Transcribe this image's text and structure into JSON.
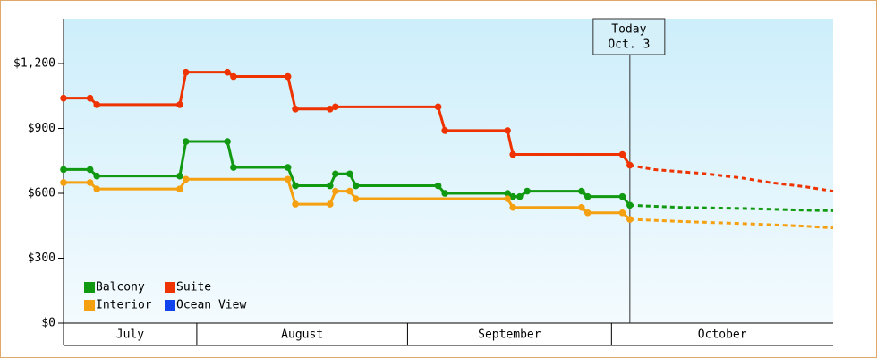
{
  "chart_data": {
    "type": "line",
    "xlim": [
      12.4,
      125.6
    ],
    "ylim": [
      0,
      1407
    ],
    "yticks": [
      {
        "value": 0,
        "label": "$0"
      },
      {
        "value": 300,
        "label": "$300"
      },
      {
        "value": 600,
        "label": "$600"
      },
      {
        "value": 900,
        "label": "$900"
      },
      {
        "value": 1200,
        "label": "$1,200"
      }
    ],
    "xticks": [
      {
        "value": 12.4,
        "label": "July"
      },
      {
        "value": 32,
        "label": "August"
      },
      {
        "value": 63,
        "label": "September"
      },
      {
        "value": 93,
        "label": "October"
      }
    ],
    "annotation": {
      "x": 95.7,
      "line1": "Today",
      "line2": "Oct. 3"
    },
    "series": [
      {
        "name": "Balcony",
        "color": "#119911",
        "x": [
          12.4,
          16.3,
          17.3,
          29.5,
          30.4,
          36.5,
          37.4,
          45.4,
          46.5,
          51.6,
          52.4,
          54.5,
          55.4,
          67.5,
          68.5,
          77.7,
          78.5,
          79.5,
          80.6,
          88.6,
          89.5,
          94.6,
          95.7
        ],
        "values": [
          710,
          710,
          680,
          680,
          840,
          840,
          720,
          720,
          635,
          635,
          690,
          690,
          635,
          635,
          600,
          600,
          585,
          585,
          610,
          610,
          585,
          585,
          545
        ],
        "forecast": {
          "x": [
            95.7,
            103.2,
            112.4,
            121.6,
            125.6
          ],
          "values": [
            545,
            535,
            530,
            522,
            520
          ]
        }
      },
      {
        "name": "Suite",
        "color": "#ee3300",
        "x": [
          12.4,
          16.3,
          17.3,
          29.5,
          30.4,
          36.5,
          37.4,
          45.4,
          46.5,
          51.6,
          52.4,
          67.5,
          68.5,
          77.7,
          78.5,
          94.6,
          95.7
        ],
        "values": [
          1040,
          1040,
          1010,
          1010,
          1160,
          1160,
          1140,
          1140,
          990,
          990,
          1000,
          1000,
          890,
          890,
          780,
          780,
          730
        ],
        "forecast": {
          "x": [
            95.7,
            99.2,
            103.2,
            107.1,
            112.4,
            116.3,
            121.6,
            125.6
          ],
          "values": [
            730,
            710,
            700,
            690,
            670,
            650,
            630,
            610
          ]
        }
      },
      {
        "name": "Interior",
        "color": "#f5a010",
        "x": [
          12.4,
          16.3,
          17.3,
          29.5,
          30.4,
          45.4,
          46.5,
          51.6,
          52.4,
          54.5,
          55.4,
          77.7,
          78.5,
          88.6,
          89.5,
          94.6,
          95.7
        ],
        "values": [
          650,
          650,
          620,
          620,
          665,
          665,
          550,
          550,
          610,
          610,
          575,
          575,
          535,
          535,
          510,
          510,
          480
        ],
        "forecast": {
          "x": [
            95.7,
            103.2,
            112.4,
            121.6,
            125.6
          ],
          "values": [
            480,
            470,
            460,
            448,
            440
          ]
        }
      },
      {
        "name": "Ocean View",
        "color": "#1144ee",
        "x": [],
        "values": []
      }
    ]
  }
}
